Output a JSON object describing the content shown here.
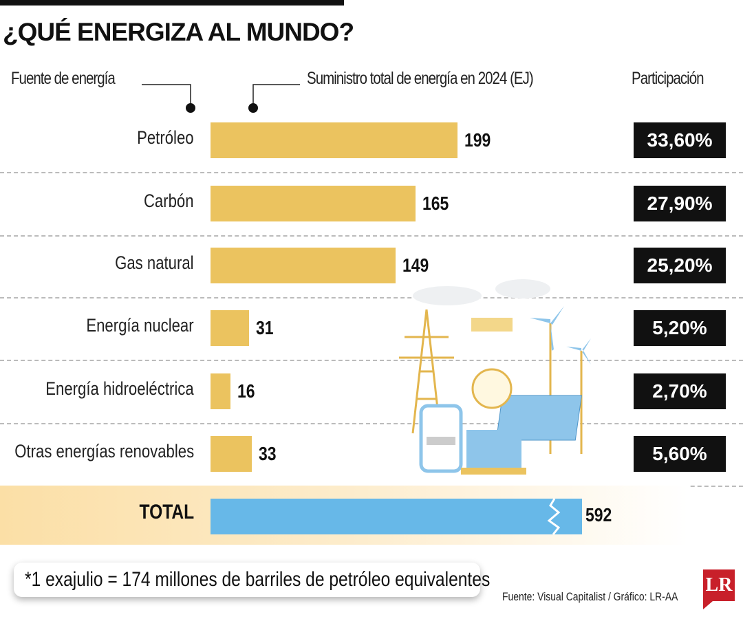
{
  "title": "¿QUÉ ENERGIZA AL MUNDO?",
  "chart_data": {
    "type": "bar",
    "orientation": "horizontal",
    "xlabel": "Suministro total de energía en 2024 (EJ)",
    "ylabel": "Fuente de energía",
    "share_header": "Participación",
    "categories": [
      "Petróleo",
      "Carbón",
      "Gas natural",
      "Energía nuclear",
      "Energía hidroeléctrica",
      "Otras energías renovables"
    ],
    "values": [
      199,
      165,
      149,
      31,
      16,
      33
    ],
    "value_labels": [
      "199",
      "165",
      "149",
      "31",
      "16",
      "33"
    ],
    "shares": [
      "33,60%",
      "27,90%",
      "25,20%",
      "5,20%",
      "2,70%",
      "5,60%"
    ],
    "total": {
      "label": "TOTAL",
      "value": 592,
      "value_label": "592",
      "broken_axis": true
    },
    "colors": {
      "bars": "#ebc35f",
      "total_bar": "#67b8e8",
      "share_box": "#111111"
    }
  },
  "footnote": "*1 exajulio = 174 millones de barriles de petróleo equivalentes",
  "source": "Fuente: Visual Capitalist / Gráfico: LR-AA",
  "logo": "LR"
}
